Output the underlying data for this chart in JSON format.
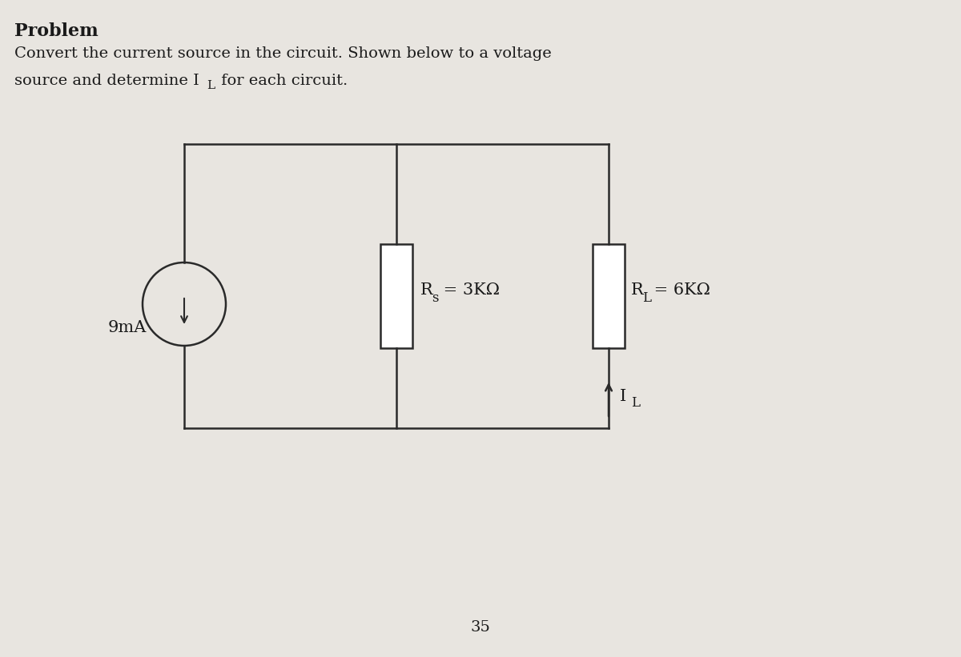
{
  "background_color": "#d8d4d0",
  "page_color": "#e8e5e0",
  "circuit_area_color": "#f0eeec",
  "title_bold": "Problem",
  "subtitle_line1": "Convert the current source in the circuit. Shown below to a voltage",
  "subtitle_line2": "source and determine I",
  "subtitle_line2b": " for each circuit.",
  "page_number": "35",
  "current_source_label": "9mA",
  "rs_label": "R",
  "rs_sub": "s",
  "rs_val": " = 3KΩ",
  "rl_label": "R",
  "rl_sub": "L",
  "rl_val": " = 6KΩ",
  "il_label": "I",
  "il_sub": "L",
  "text_color": "#1a1a1a",
  "circuit_color": "#2a2a2a",
  "font_size_title": 16,
  "font_size_text": 14,
  "font_size_circuit": 14
}
